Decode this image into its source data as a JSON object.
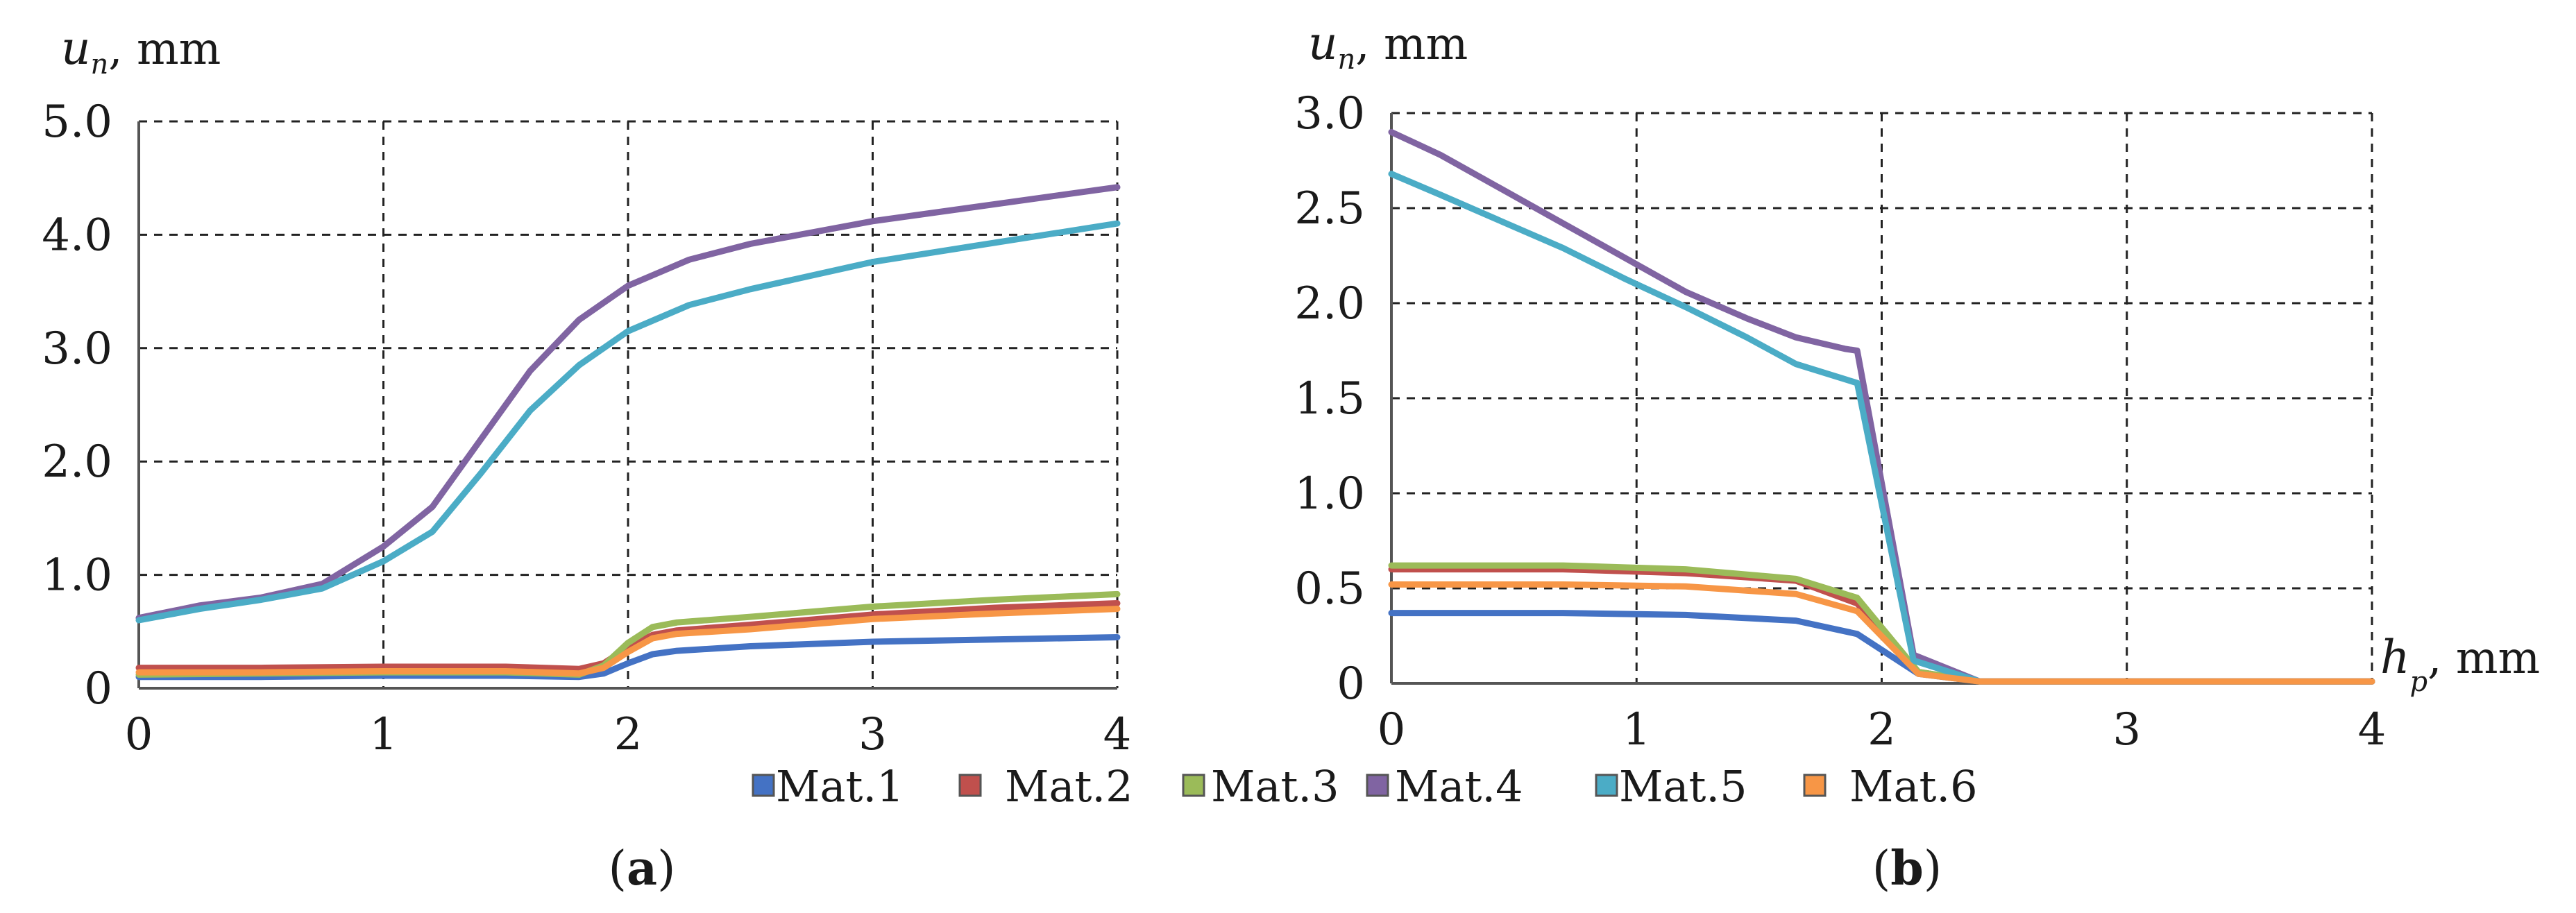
{
  "colors": {
    "Mat.1": "#4472c4",
    "Mat.2": "#c0504d",
    "Mat.3": "#9bbb59",
    "Mat.4": "#8064a2",
    "Mat.5": "#4bacc6",
    "Mat.6": "#f79646"
  },
  "legend": {
    "items": [
      {
        "label": "Mat.1",
        "color": "#4472c4"
      },
      {
        "label": "Mat.2",
        "color": "#c0504d"
      },
      {
        "label": "Mat.3",
        "color": "#9bbb59"
      },
      {
        "label": "Mat.4",
        "color": "#8064a2"
      },
      {
        "label": "Mat.5",
        "color": "#4bacc6"
      },
      {
        "label": "Mat.6",
        "color": "#f79646"
      }
    ]
  },
  "panels": {
    "a": {
      "open": "(",
      "letter": "a",
      "close": ")"
    },
    "b": {
      "open": "(",
      "letter": "b",
      "close": ")"
    }
  },
  "chart_data": [
    {
      "type": "line",
      "panel": "a",
      "title": "",
      "ylabel": {
        "var": "u",
        "sub": "n",
        "unit": ", mm"
      },
      "xlabel": {
        "var": "",
        "sub": "",
        "unit": ""
      },
      "xlim": [
        0,
        4
      ],
      "ylim": [
        0,
        5
      ],
      "xticks": [
        "0",
        "1",
        "2",
        "3",
        "4"
      ],
      "yticks": [
        "0",
        "1.0",
        "2.0",
        "3.0",
        "4.0",
        "5.0"
      ],
      "ytick_values": [
        0,
        1,
        2,
        3,
        4,
        5
      ],
      "grid": true,
      "series": [
        {
          "name": "Mat.1",
          "x": [
            0,
            0.5,
            1.0,
            1.5,
            1.8,
            1.9,
            2.0,
            2.1,
            2.2,
            2.5,
            3.0,
            3.5,
            4.0
          ],
          "y": [
            0.1,
            0.1,
            0.11,
            0.11,
            0.1,
            0.13,
            0.22,
            0.3,
            0.33,
            0.37,
            0.41,
            0.43,
            0.45
          ]
        },
        {
          "name": "Mat.2",
          "x": [
            0,
            0.5,
            1.0,
            1.5,
            1.8,
            1.9,
            2.0,
            2.1,
            2.2,
            2.5,
            3.0,
            3.5,
            4.0
          ],
          "y": [
            0.18,
            0.18,
            0.19,
            0.19,
            0.17,
            0.22,
            0.36,
            0.47,
            0.51,
            0.56,
            0.65,
            0.71,
            0.75
          ]
        },
        {
          "name": "Mat.3",
          "x": [
            0,
            0.5,
            1.0,
            1.5,
            1.8,
            1.9,
            2.0,
            2.1,
            2.2,
            2.5,
            3.0,
            3.5,
            4.0
          ],
          "y": [
            0.12,
            0.13,
            0.14,
            0.14,
            0.12,
            0.2,
            0.4,
            0.54,
            0.58,
            0.63,
            0.72,
            0.78,
            0.83
          ]
        },
        {
          "name": "Mat.4",
          "x": [
            0,
            0.25,
            0.5,
            0.75,
            1.0,
            1.2,
            1.4,
            1.6,
            1.8,
            2.0,
            2.25,
            2.5,
            3.0,
            3.5,
            4.0
          ],
          "y": [
            0.62,
            0.73,
            0.8,
            0.92,
            1.25,
            1.6,
            2.2,
            2.8,
            3.25,
            3.55,
            3.78,
            3.92,
            4.12,
            4.27,
            4.42
          ]
        },
        {
          "name": "Mat.5",
          "x": [
            0,
            0.25,
            0.5,
            0.75,
            1.0,
            1.2,
            1.4,
            1.6,
            1.8,
            2.0,
            2.25,
            2.5,
            3.0,
            3.5,
            4.0
          ],
          "y": [
            0.6,
            0.7,
            0.78,
            0.88,
            1.12,
            1.38,
            1.9,
            2.45,
            2.85,
            3.15,
            3.38,
            3.52,
            3.76,
            3.93,
            4.1
          ]
        },
        {
          "name": "Mat.6",
          "x": [
            0,
            0.5,
            1.0,
            1.5,
            1.8,
            1.9,
            2.0,
            2.1,
            2.2,
            2.5,
            3.0,
            3.5,
            4.0
          ],
          "y": [
            0.14,
            0.14,
            0.15,
            0.15,
            0.13,
            0.18,
            0.32,
            0.44,
            0.48,
            0.52,
            0.61,
            0.66,
            0.7
          ]
        }
      ]
    },
    {
      "type": "line",
      "panel": "b",
      "title": "",
      "ylabel": {
        "var": "u",
        "sub": "n",
        "unit": ", mm"
      },
      "xlabel": {
        "var": "h",
        "sub": "p",
        "unit": ", mm"
      },
      "xlim": [
        0,
        4
      ],
      "ylim": [
        0,
        3
      ],
      "xticks": [
        "0",
        "1",
        "2",
        "3",
        "4"
      ],
      "yticks": [
        "0",
        "0.5",
        "1.0",
        "1.5",
        "2.0",
        "2.5",
        "3.0"
      ],
      "ytick_values": [
        0,
        0.5,
        1,
        1.5,
        2,
        2.5,
        3
      ],
      "grid": true,
      "series": [
        {
          "name": "Mat.1",
          "x": [
            0,
            0.7,
            1.2,
            1.65,
            1.9,
            2.15,
            2.4,
            4.0
          ],
          "y": [
            0.37,
            0.37,
            0.36,
            0.33,
            0.26,
            0.05,
            0.01,
            0.01
          ]
        },
        {
          "name": "Mat.2",
          "x": [
            0,
            0.7,
            1.2,
            1.65,
            1.9,
            2.15,
            2.4,
            4.0
          ],
          "y": [
            0.6,
            0.6,
            0.58,
            0.54,
            0.42,
            0.06,
            0.01,
            0.01
          ]
        },
        {
          "name": "Mat.3",
          "x": [
            0,
            0.7,
            1.2,
            1.65,
            1.9,
            2.15,
            2.4,
            4.0
          ],
          "y": [
            0.62,
            0.62,
            0.6,
            0.55,
            0.45,
            0.06,
            0.01,
            0.01
          ]
        },
        {
          "name": "Mat.4",
          "x": [
            0,
            0.2,
            0.45,
            0.7,
            0.95,
            1.2,
            1.45,
            1.65,
            1.85,
            1.9,
            2.13,
            2.4,
            4.0
          ],
          "y": [
            2.9,
            2.78,
            2.6,
            2.42,
            2.24,
            2.06,
            1.92,
            1.82,
            1.76,
            1.75,
            0.15,
            0.01,
            0.01
          ]
        },
        {
          "name": "Mat.5",
          "x": [
            0,
            0.2,
            0.45,
            0.7,
            0.95,
            1.2,
            1.45,
            1.65,
            1.85,
            1.9,
            2.13,
            2.4,
            4.0
          ],
          "y": [
            2.68,
            2.57,
            2.43,
            2.29,
            2.13,
            1.98,
            1.82,
            1.68,
            1.6,
            1.58,
            0.12,
            0.01,
            0.01
          ]
        },
        {
          "name": "Mat.6",
          "x": [
            0,
            0.7,
            1.2,
            1.65,
            1.9,
            2.15,
            2.4,
            4.0
          ],
          "y": [
            0.52,
            0.52,
            0.51,
            0.47,
            0.38,
            0.05,
            0.01,
            0.01
          ]
        }
      ]
    }
  ]
}
